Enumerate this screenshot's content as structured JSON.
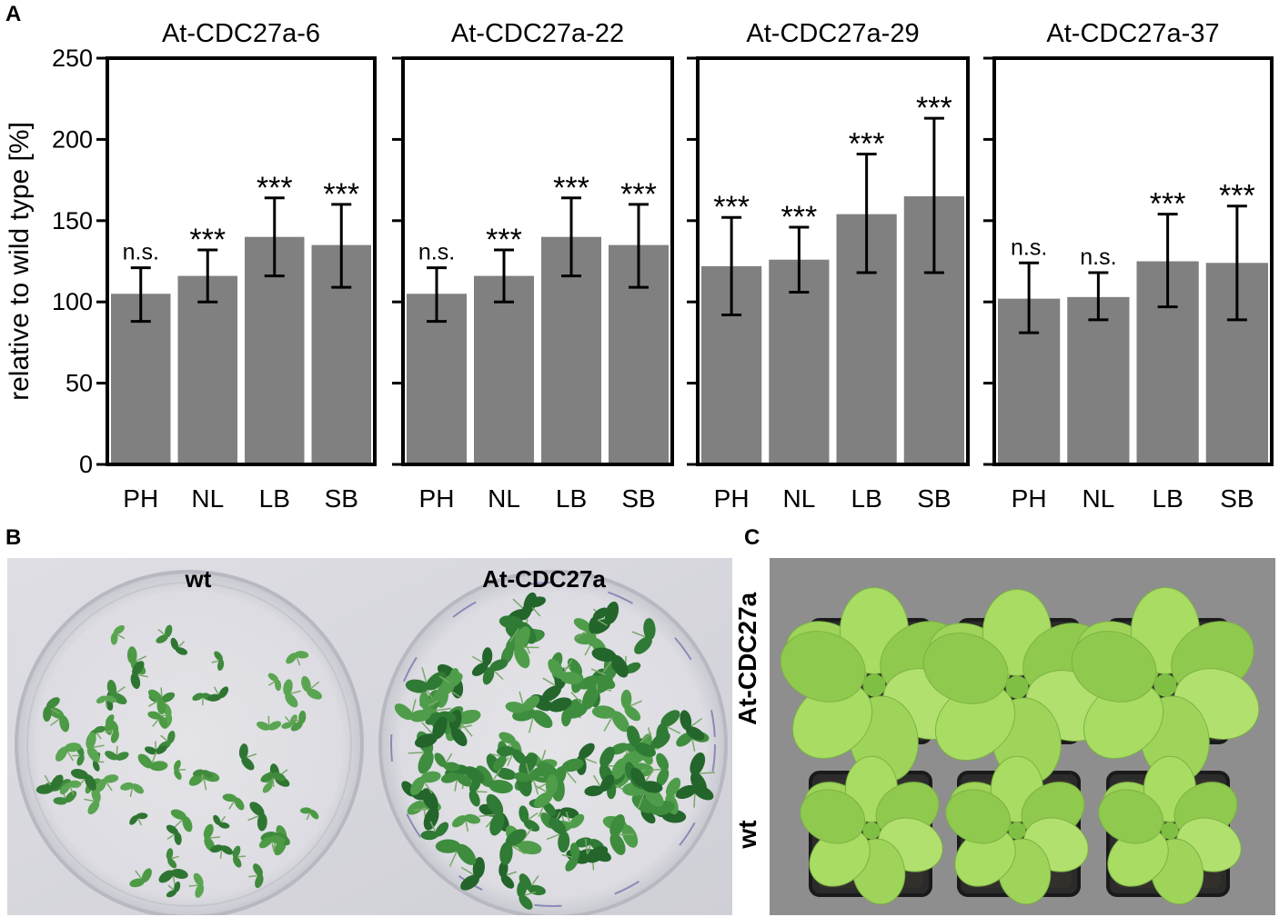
{
  "panel_letters": {
    "a": "A",
    "b": "B",
    "c": "C"
  },
  "colors": {
    "bar": "#808080",
    "frame": "#000000",
    "text": "#000000"
  },
  "chart_data": [
    {
      "type": "bar",
      "title": "At-CDC27a-6",
      "ylabel": "relative to wild type [%]",
      "ylim": [
        0,
        250
      ],
      "yticks": [
        0,
        50,
        100,
        150,
        200,
        250
      ],
      "categories": [
        "PH",
        "NL",
        "LB",
        "SB"
      ],
      "values": [
        105,
        116,
        140,
        135
      ],
      "errors": [
        [
          88,
          121
        ],
        [
          100,
          132
        ],
        [
          116,
          164
        ],
        [
          109,
          160
        ]
      ],
      "annotations": [
        "n.s.",
        "***",
        "***",
        "***"
      ]
    },
    {
      "type": "bar",
      "title": "At-CDC27a-22",
      "ylim": [
        0,
        250
      ],
      "yticks": [
        0,
        50,
        100,
        150,
        200,
        250
      ],
      "categories": [
        "PH",
        "NL",
        "LB",
        "SB"
      ],
      "values": [
        105,
        116,
        140,
        135
      ],
      "errors": [
        [
          88,
          121
        ],
        [
          100,
          132
        ],
        [
          116,
          164
        ],
        [
          109,
          160
        ]
      ],
      "annotations": [
        "n.s.",
        "***",
        "***",
        "***"
      ]
    },
    {
      "type": "bar",
      "title": "At-CDC27a-29",
      "ylim": [
        0,
        250
      ],
      "yticks": [
        0,
        50,
        100,
        150,
        200,
        250
      ],
      "categories": [
        "PH",
        "NL",
        "LB",
        "SB"
      ],
      "values": [
        122,
        126,
        154,
        165
      ],
      "errors": [
        [
          92,
          152
        ],
        [
          106,
          146
        ],
        [
          118,
          191
        ],
        [
          118,
          213
        ]
      ],
      "annotations": [
        "***",
        "***",
        "***",
        "***"
      ]
    },
    {
      "type": "bar",
      "title": "At-CDC27a-37",
      "ylim": [
        0,
        250
      ],
      "yticks": [
        0,
        50,
        100,
        150,
        200,
        250
      ],
      "categories": [
        "PH",
        "NL",
        "LB",
        "SB"
      ],
      "values": [
        102,
        103,
        125,
        124
      ],
      "errors": [
        [
          81,
          124
        ],
        [
          89,
          118
        ],
        [
          97,
          154
        ],
        [
          89,
          159
        ]
      ],
      "annotations": [
        "n.s.",
        "n.s.",
        "***",
        "***"
      ]
    }
  ],
  "photo_b": {
    "left_plate_label": "wt",
    "right_plate_label": "At-CDC27a"
  },
  "photo_c": {
    "top_row_label": "At-CDC27a",
    "bottom_row_label": "wt"
  }
}
